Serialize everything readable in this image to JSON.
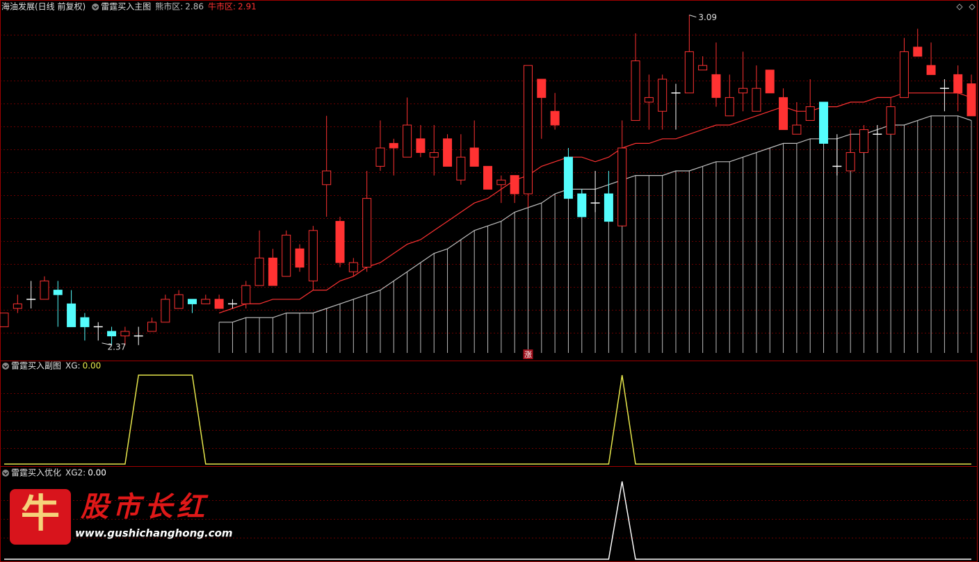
{
  "chart_data": [
    {
      "type": "candlestick",
      "title": "海油发展(日线 前复权)",
      "subtitle": "雷霆买入主图",
      "open": [
        2.41,
        2.45,
        2.47,
        2.47,
        2.49,
        2.46,
        2.43,
        2.41,
        2.4,
        2.39,
        2.39,
        2.4,
        2.42,
        2.45,
        2.47,
        2.46,
        2.47,
        2.46,
        2.46,
        2.5,
        2.56,
        2.52,
        2.58,
        2.51,
        2.72,
        2.64,
        2.53,
        2.54,
        2.76,
        2.81,
        2.78,
        2.82,
        2.78,
        2.82,
        2.73,
        2.8,
        2.76,
        2.72,
        2.74,
        2.7,
        2.95,
        2.88,
        2.78,
        2.7,
        2.68,
        2.7,
        2.63,
        2.86,
        2.9,
        2.88,
        2.92,
        2.92,
        2.97,
        2.96,
        2.87,
        2.92,
        2.88,
        2.97,
        2.91,
        2.83,
        2.86,
        2.9,
        2.76,
        2.75,
        2.79,
        2.83,
        2.83,
        2.91,
        3.02,
        2.98,
        2.93,
        2.96,
        2.94
      ],
      "high": [
        2.44,
        2.48,
        2.51,
        2.52,
        2.51,
        2.49,
        2.44,
        2.42,
        2.41,
        2.41,
        2.41,
        2.43,
        2.48,
        2.49,
        2.47,
        2.48,
        2.48,
        2.47,
        2.51,
        2.62,
        2.58,
        2.62,
        2.59,
        2.63,
        2.87,
        2.65,
        2.56,
        2.75,
        2.86,
        2.82,
        2.91,
        2.85,
        2.85,
        2.83,
        2.83,
        2.86,
        2.76,
        2.74,
        2.74,
        2.98,
        2.95,
        2.92,
        2.8,
        2.71,
        2.75,
        2.75,
        2.86,
        3.05,
        2.96,
        2.96,
        2.94,
        3.09,
        3.0,
        3.03,
        2.96,
        3.01,
        2.98,
        2.97,
        2.93,
        2.9,
        2.95,
        2.9,
        2.83,
        2.84,
        2.85,
        2.85,
        2.91,
        3.04,
        3.06,
        3.03,
        2.95,
        2.98,
        2.96
      ],
      "low": [
        2.41,
        2.44,
        2.45,
        2.47,
        2.41,
        2.41,
        2.38,
        2.38,
        2.37,
        2.37,
        2.37,
        2.4,
        2.42,
        2.45,
        2.44,
        2.46,
        2.45,
        2.45,
        2.45,
        2.5,
        2.5,
        2.52,
        2.53,
        2.49,
        2.65,
        2.54,
        2.52,
        2.53,
        2.75,
        2.74,
        2.78,
        2.78,
        2.74,
        2.76,
        2.72,
        2.76,
        2.71,
        2.68,
        2.68,
        2.67,
        2.82,
        2.84,
        2.69,
        2.65,
        2.66,
        2.64,
        2.63,
        2.86,
        2.84,
        2.84,
        2.84,
        2.92,
        2.97,
        2.89,
        2.87,
        2.88,
        2.88,
        2.92,
        2.84,
        2.83,
        2.86,
        2.81,
        2.74,
        2.75,
        2.79,
        2.83,
        2.83,
        2.91,
        3.0,
        2.96,
        2.88,
        2.88,
        2.87
      ],
      "close": [
        2.44,
        2.46,
        2.47,
        2.51,
        2.48,
        2.41,
        2.41,
        2.41,
        2.39,
        2.4,
        2.39,
        2.42,
        2.47,
        2.48,
        2.46,
        2.47,
        2.45,
        2.46,
        2.5,
        2.56,
        2.5,
        2.61,
        2.54,
        2.62,
        2.75,
        2.55,
        2.55,
        2.69,
        2.8,
        2.8,
        2.85,
        2.79,
        2.79,
        2.76,
        2.78,
        2.76,
        2.71,
        2.73,
        2.7,
        2.98,
        2.91,
        2.85,
        2.69,
        2.65,
        2.68,
        2.64,
        2.8,
        2.99,
        2.91,
        2.95,
        2.92,
        3.01,
        2.98,
        2.91,
        2.91,
        2.93,
        2.93,
        2.92,
        2.84,
        2.85,
        2.89,
        2.81,
        2.76,
        2.79,
        2.84,
        2.83,
        2.89,
        3.01,
        3.0,
        2.96,
        2.93,
        2.92,
        2.87
      ],
      "colors": [
        "#ff3232",
        "#ff3232",
        "#ffffff",
        "#ff3232",
        "#54fcfc",
        "#54fcfc",
        "#54fcfc",
        "#ffffff",
        "#54fcfc",
        "#ff3232",
        "#ffffff",
        "#ff3232",
        "#ff3232",
        "#ff3232",
        "#54fcfc",
        "#ff3232",
        "#ff3232",
        "#ffffff",
        "#ff3232",
        "#ff3232",
        "#ff3232",
        "#ff3232",
        "#ff3232",
        "#ff3232",
        "#ff3232",
        "#ff3232",
        "#ff3232",
        "#ff3232",
        "#ff3232",
        "#ff3232",
        "#ff3232",
        "#ff3232",
        "#ff3232",
        "#ff3232",
        "#ff3232",
        "#ff3232",
        "#ff3232",
        "#ff3232",
        "#ff3232",
        "#ff3232",
        "#ff3232",
        "#ff3232",
        "#54fcfc",
        "#54fcfc",
        "#ffffff",
        "#54fcfc",
        "#ff3232",
        "#ff3232",
        "#ff3232",
        "#ff3232",
        "#ffffff",
        "#ff3232",
        "#ff3232",
        "#ff3232",
        "#ff3232",
        "#ff3232",
        "#ff3232",
        "#ff3232",
        "#ff3232",
        "#ff3232",
        "#ff3232",
        "#54fcfc",
        "#ffffff",
        "#ff3232",
        "#ff3232",
        "#ffffff",
        "#ff3232",
        "#ff3232",
        "#ff3232",
        "#ff3232",
        "#ffffff",
        "#ff3232",
        "#ff3232"
      ],
      "series": [
        {
          "name": "熊市区:",
          "color": "#c0c0c0",
          "values": [
            null,
            null,
            null,
            null,
            null,
            null,
            null,
            null,
            null,
            null,
            null,
            null,
            null,
            null,
            null,
            null,
            2.42,
            2.42,
            2.43,
            2.43,
            2.43,
            2.44,
            2.44,
            2.44,
            2.45,
            2.46,
            2.47,
            2.48,
            2.49,
            2.51,
            2.53,
            2.55,
            2.57,
            2.58,
            2.6,
            2.62,
            2.63,
            2.64,
            2.66,
            2.67,
            2.68,
            2.7,
            2.71,
            2.71,
            2.71,
            2.72,
            2.73,
            2.74,
            2.74,
            2.74,
            2.75,
            2.75,
            2.76,
            2.77,
            2.77,
            2.78,
            2.79,
            2.8,
            2.81,
            2.81,
            2.82,
            2.82,
            2.82,
            2.83,
            2.83,
            2.84,
            2.85,
            2.85,
            2.86,
            2.87,
            2.87,
            2.87,
            2.86
          ]
        },
        {
          "name": "牛市区:",
          "color": "#ff3232",
          "values": [
            null,
            null,
            null,
            null,
            null,
            null,
            null,
            null,
            null,
            null,
            null,
            null,
            null,
            null,
            null,
            null,
            2.44,
            2.45,
            2.46,
            2.46,
            2.47,
            2.47,
            2.47,
            2.49,
            2.49,
            2.51,
            2.52,
            2.54,
            2.55,
            2.57,
            2.59,
            2.6,
            2.62,
            2.64,
            2.66,
            2.68,
            2.69,
            2.71,
            2.73,
            2.74,
            2.76,
            2.77,
            2.78,
            2.78,
            2.77,
            2.78,
            2.8,
            2.81,
            2.81,
            2.82,
            2.82,
            2.83,
            2.84,
            2.85,
            2.85,
            2.86,
            2.87,
            2.88,
            2.89,
            2.88,
            2.88,
            2.89,
            2.89,
            2.9,
            2.9,
            2.91,
            2.91,
            2.92,
            2.92,
            2.92,
            2.92,
            2.92,
            2.91
          ]
        }
      ],
      "max_label": 3.09,
      "min_label": 2.37,
      "signal": {
        "text": "涨",
        "index": 39
      },
      "ylim": [
        2.35,
        3.1
      ],
      "grid": true
    },
    {
      "type": "line",
      "title": "雷霆买入副图",
      "ylim": [
        0,
        1
      ],
      "grid": true,
      "series": [
        {
          "name": "XG:",
          "color": "#e8e84c",
          "values": [
            0,
            0,
            0,
            0,
            0,
            0,
            0,
            0,
            0,
            0,
            1,
            1,
            1,
            1,
            1,
            0,
            0,
            0,
            0,
            0,
            0,
            0,
            0,
            0,
            0,
            0,
            0,
            0,
            0,
            0,
            0,
            0,
            0,
            0,
            0,
            0,
            0,
            0,
            0,
            0,
            0,
            0,
            0,
            0,
            0,
            0,
            1,
            0,
            0,
            0,
            0,
            0,
            0,
            0,
            0,
            0,
            0,
            0,
            0,
            0,
            0,
            0,
            0,
            0,
            0,
            0,
            0,
            0,
            0,
            0,
            0,
            0,
            0
          ],
          "value_labels": [
            null,
            null,
            null,
            null,
            null,
            null,
            null,
            null,
            null,
            null,
            null,
            null,
            null,
            null,
            null,
            null,
            null,
            null,
            null,
            null,
            null,
            null,
            null,
            null,
            null,
            null,
            null,
            null,
            null,
            null,
            null,
            null,
            null,
            null,
            null,
            null,
            null,
            null,
            null,
            null,
            null,
            null,
            null,
            null,
            null,
            null,
            null,
            null,
            null,
            null,
            null,
            null,
            null,
            null,
            null,
            null,
            null,
            null,
            null,
            null,
            null,
            null,
            null,
            null,
            null,
            null,
            null,
            null,
            null,
            null,
            null,
            null,
            "0.00"
          ]
        }
      ]
    },
    {
      "type": "line",
      "title": "雷霆买入优化",
      "ylim": [
        0,
        1
      ],
      "grid": true,
      "series": [
        {
          "name": "XG2:",
          "color": "#ffffff",
          "values": [
            0,
            0,
            0,
            0,
            0,
            0,
            0,
            0,
            0,
            0,
            0,
            0,
            0,
            0,
            0,
            0,
            0,
            0,
            0,
            0,
            0,
            0,
            0,
            0,
            0,
            0,
            0,
            0,
            0,
            0,
            0,
            0,
            0,
            0,
            0,
            0,
            0,
            0,
            0,
            0,
            0,
            0,
            0,
            0,
            0,
            0,
            1,
            0,
            0,
            0,
            0,
            0,
            0,
            0,
            0,
            0,
            0,
            0,
            0,
            0,
            0,
            0,
            0,
            0,
            0,
            0,
            0,
            0,
            0,
            0,
            0,
            0,
            0
          ],
          "value_labels": [
            null,
            null,
            null,
            null,
            null,
            null,
            null,
            null,
            null,
            null,
            null,
            null,
            null,
            null,
            null,
            null,
            null,
            null,
            null,
            null,
            null,
            null,
            null,
            null,
            null,
            null,
            null,
            null,
            null,
            null,
            null,
            null,
            null,
            null,
            null,
            null,
            null,
            null,
            null,
            null,
            null,
            null,
            null,
            null,
            null,
            null,
            null,
            null,
            null,
            null,
            null,
            null,
            null,
            null,
            null,
            null,
            null,
            null,
            null,
            null,
            null,
            null,
            null,
            null,
            null,
            null,
            null,
            null,
            null,
            null,
            null,
            null,
            "0.00"
          ]
        }
      ]
    }
  ],
  "watermark": {
    "logo": "牛",
    "name": "股市长红",
    "url": "www.gushichanghong.com"
  }
}
